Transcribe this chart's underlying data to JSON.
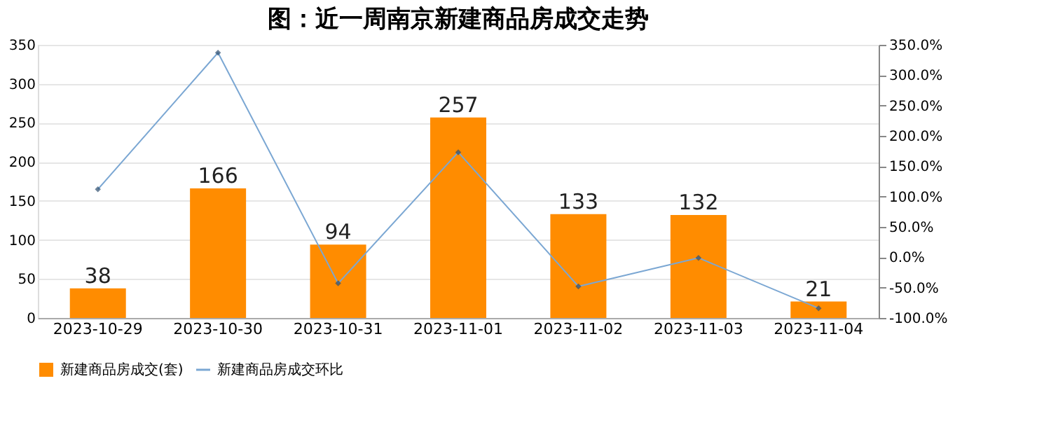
{
  "chart_data": {
    "type": "bar",
    "title": "图：近一周南京新建商品房成交走势",
    "categories": [
      "2023-10-29",
      "2023-10-30",
      "2023-10-31",
      "2023-11-01",
      "2023-11-02",
      "2023-11-03",
      "2023-11-04"
    ],
    "series": [
      {
        "name": "新建商品房成交(套)",
        "color": "#ff8c00",
        "values": [
          38,
          166,
          94,
          257,
          133,
          132,
          21
        ],
        "value_labels": [
          "38",
          "166",
          "94",
          "257",
          "133",
          "132",
          "21"
        ]
      },
      {
        "name": "新建商品房成交环比",
        "type": "line",
        "axis": "y2",
        "color": "#7ba7d3",
        "marker": "diamond",
        "values": [
          112,
          337,
          -43,
          173,
          -48,
          -1,
          -84
        ]
      }
    ],
    "ylim": [
      0,
      350
    ],
    "yticks": [
      0,
      50,
      100,
      150,
      200,
      250,
      300,
      350
    ],
    "y2lim": [
      -100,
      350
    ],
    "y2ticks": [
      {
        "value": 350,
        "label": "350.0%"
      },
      {
        "value": 300,
        "label": "300.0%"
      },
      {
        "value": 250,
        "label": "250.0%"
      },
      {
        "value": 200,
        "label": "200.0%"
      },
      {
        "value": 150,
        "label": "150.0%"
      },
      {
        "value": 100,
        "label": "100.0%"
      },
      {
        "value": 50,
        "label": "50.0%"
      },
      {
        "value": 0,
        "label": "0.0%"
      },
      {
        "value": -50,
        "label": "-50.0%"
      },
      {
        "value": -100,
        "label": "-100.0%"
      }
    ],
    "grid": "y",
    "legend": "bottom"
  }
}
